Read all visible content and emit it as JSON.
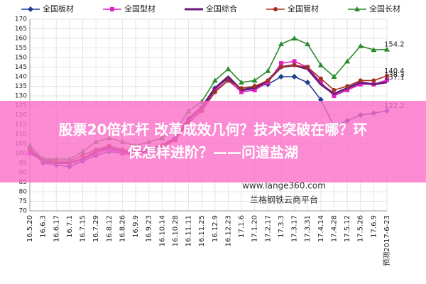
{
  "chart_data": {
    "type": "line",
    "categories": [
      "16.5.20",
      "16.6.3",
      "16.6.17",
      "16.7.1",
      "16.7.15",
      "16.7.29",
      "16.8.12",
      "16.8.26",
      "16.9.9",
      "16.9.23",
      "16.10.14",
      "16.10.28",
      "16.11.11",
      "16.11.25",
      "16.12.9",
      "16.12.23",
      "17.1.6",
      "17.1.20",
      "17.2.17",
      "17.3.3",
      "17.3.17",
      "17.3.31",
      "17.4.14",
      "17.4.28",
      "17.5.12",
      "17.5.26",
      "17.6.9",
      "预测2017-6-23"
    ],
    "series": [
      {
        "name": "全国板材",
        "color": "#1f3f8f",
        "marker": "diamond",
        "values": [
          103,
          95,
          94,
          93,
          96,
          99,
          101,
          100,
          99,
          102,
          104,
          108,
          118,
          124,
          134,
          139,
          133,
          135,
          136,
          140,
          140,
          137,
          128,
          114,
          117,
          120,
          121,
          122.2
        ]
      },
      {
        "name": "全国型材",
        "color": "#e020c0",
        "marker": "square",
        "values": [
          100,
          96,
          95,
          95,
          97,
          100,
          102,
          100,
          99,
          101,
          103,
          107,
          117,
          123,
          133,
          138,
          132,
          133,
          137,
          147,
          148,
          145,
          137,
          130,
          133,
          136,
          136,
          138.3
        ]
      },
      {
        "name": "全国综合",
        "color": "#6a1a7a",
        "marker": "none",
        "values": [
          101,
          96,
          95,
          95,
          97,
          101,
          103,
          101,
          100,
          102,
          104,
          108,
          118,
          124,
          134,
          140,
          133,
          134,
          138,
          145,
          146,
          144,
          136,
          131,
          134,
          137,
          136,
          137.1
        ]
      },
      {
        "name": "全国管材",
        "color": "#a0301f",
        "marker": "circle",
        "values": [
          102,
          97,
          96,
          96,
          99,
          102,
          104,
          102,
          101,
          103,
          104,
          107,
          116,
          122,
          132,
          138,
          134,
          135,
          138,
          145,
          146,
          145,
          139,
          133,
          135,
          138,
          138,
          140.4
        ]
      },
      {
        "name": "全国长材",
        "color": "#2a8a2a",
        "marker": "triangle",
        "values": [
          104,
          97,
          97,
          97,
          101,
          106,
          108,
          106,
          104,
          106,
          108,
          112,
          122,
          127,
          138,
          144,
          137,
          138,
          143,
          157,
          160,
          157,
          146,
          140,
          148,
          156,
          154,
          154.2
        ]
      }
    ],
    "ylim": [
      70,
      170
    ],
    "yticks": [
      70,
      75,
      80,
      85,
      90,
      95,
      100,
      105,
      110,
      115,
      120,
      125,
      130,
      135,
      140,
      145,
      150,
      155,
      160,
      165,
      170
    ],
    "grid": true,
    "overlay_title": [
      "股票20倍杠杆 改革成效几何？技术突破在哪？环",
      "保怎样进阶？——问道盐湖"
    ],
    "watermark": [
      "www.lange360.com",
      "兰格钢铁云商平台"
    ]
  }
}
